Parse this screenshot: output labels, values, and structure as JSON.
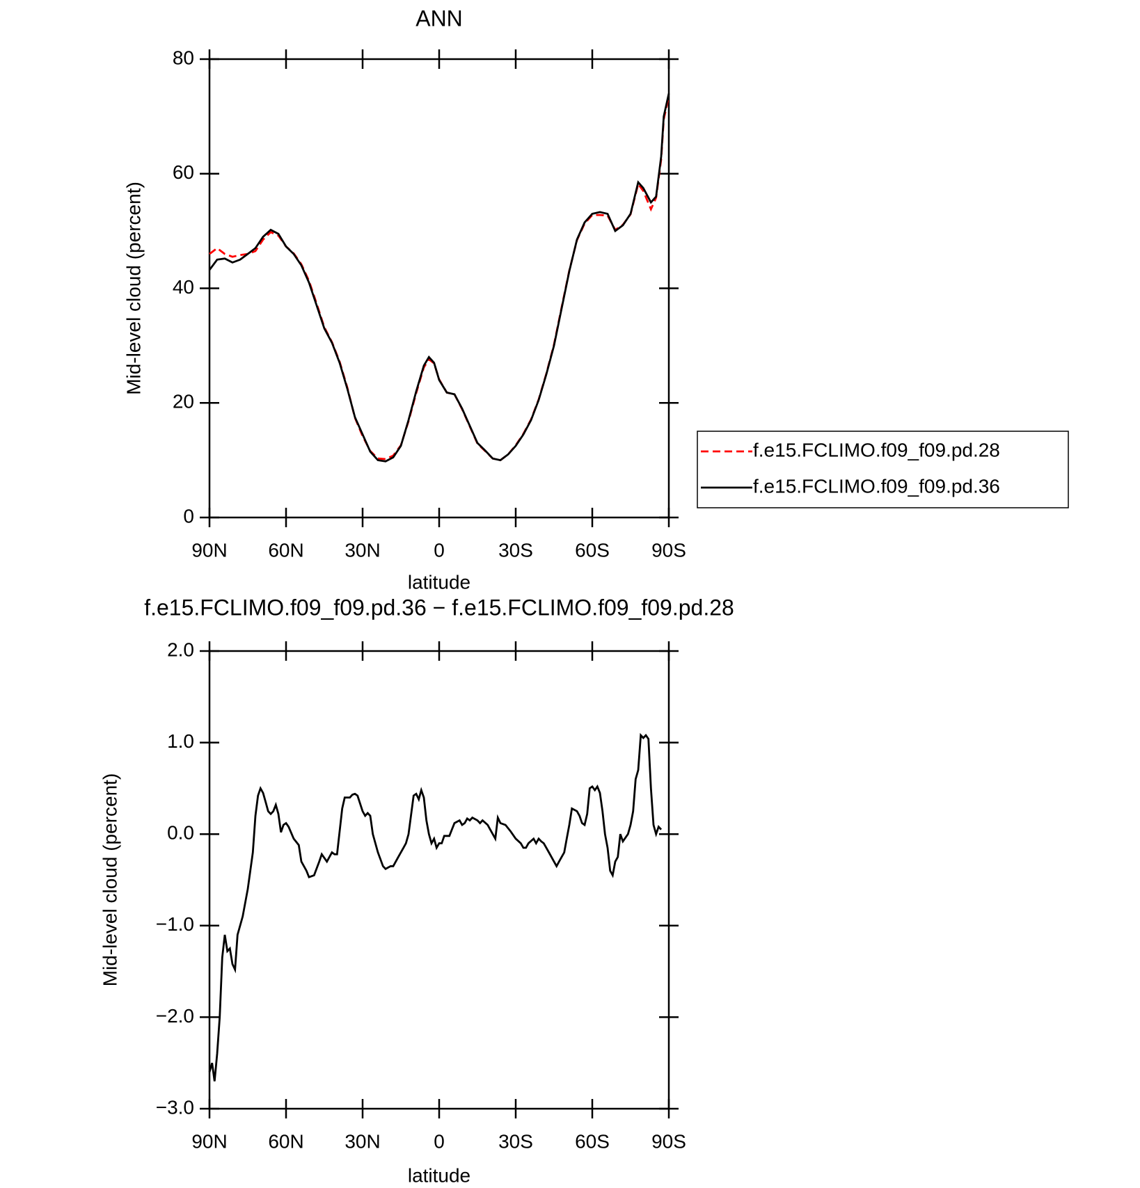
{
  "chart_data": [
    {
      "type": "line",
      "title": "ANN",
      "xlabel": "latitude",
      "ylabel": "Mid-level cloud (percent)",
      "x": [
        90,
        87,
        84,
        81,
        78,
        75,
        72,
        69,
        66,
        63,
        60,
        57,
        54,
        51,
        48,
        45,
        42,
        39,
        36,
        33,
        30,
        27,
        24,
        21,
        18,
        15,
        12,
        9,
        6,
        4,
        2,
        0,
        -3,
        -6,
        -9,
        -12,
        -15,
        -18,
        -21,
        -24,
        -27,
        -30,
        -33,
        -36,
        -39,
        -42,
        -45,
        -48,
        -51,
        -54,
        -57,
        -60,
        -63,
        -66,
        -69,
        -72,
        -75,
        -78,
        -80,
        -83,
        -85,
        -87,
        -88,
        -90
      ],
      "series": [
        {
          "name": "f.e15.FCLIMO.f09_f09.pd.28",
          "color": "#ff0000",
          "linestyle": "dashed",
          "values": [
            46,
            47,
            46,
            45.5,
            45.8,
            46,
            46.5,
            48.5,
            49.8,
            49.2,
            47.3,
            46.1,
            44.2,
            41.3,
            37.3,
            33.2,
            30.6,
            27.2,
            22.7,
            17.4,
            14.2,
            11.6,
            10.3,
            10.2,
            10.8,
            12.6,
            16.8,
            21.7,
            26.2,
            27.6,
            26.9,
            24.1,
            21.8,
            21.5,
            18.9,
            15.9,
            12.9,
            11.6,
            10.3,
            10,
            11,
            12.6,
            14.6,
            17.1,
            20.6,
            25.1,
            30.2,
            36.7,
            43.1,
            48.4,
            51.3,
            52.8,
            52.8,
            52.7,
            50.2,
            51.1,
            52.9,
            58.2,
            57,
            53.8,
            55.8,
            62.5,
            69.5,
            73.5
          ]
        },
        {
          "name": "f.e15.FCLIMO.f09_f09.pd.36",
          "color": "#000000",
          "linestyle": "solid",
          "values": [
            43.2,
            45,
            45.2,
            44.5,
            45,
            46,
            47,
            49,
            50.2,
            49.5,
            47.3,
            46,
            44,
            41,
            37,
            33,
            30.5,
            27,
            22.5,
            17.5,
            14.5,
            11.5,
            10,
            9.8,
            10.5,
            12.5,
            17,
            22,
            26.5,
            28,
            27,
            24,
            21.8,
            21.5,
            19,
            16,
            13,
            11.7,
            10.3,
            10,
            11,
            12.5,
            14.5,
            17,
            20.5,
            25,
            30,
            36.5,
            43,
            48.5,
            51.5,
            53,
            53.3,
            53,
            50,
            51,
            53,
            58.5,
            57.5,
            55,
            56,
            63,
            70,
            74
          ]
        }
      ],
      "xlim": [
        90,
        -90
      ],
      "xticks": [
        {
          "value": 90,
          "label": "90N"
        },
        {
          "value": 60,
          "label": "60N"
        },
        {
          "value": 30,
          "label": "30N"
        },
        0,
        {
          "value": -30,
          "label": "30S"
        },
        {
          "value": -60,
          "label": "60S"
        },
        {
          "value": -90,
          "label": "90S"
        }
      ],
      "ylim": [
        0,
        80
      ],
      "yticks": [
        0,
        20,
        40,
        60,
        80
      ],
      "legend": "right"
    },
    {
      "type": "line",
      "title": "f.e15.FCLIMO.f09_f09.pd.36 − f.e15.FCLIMO.f09_f09.pd.28",
      "xlabel": "latitude",
      "ylabel": "Mid-level cloud (percent)",
      "x": [
        90,
        89,
        88,
        87,
        86,
        85,
        84,
        83,
        82,
        81,
        80,
        79,
        77,
        75,
        73,
        72,
        71,
        70,
        69,
        68,
        67,
        66,
        65,
        64,
        63,
        62,
        61,
        60,
        59,
        57,
        55,
        54,
        52,
        51,
        49,
        47,
        46,
        44,
        42,
        41,
        40,
        38,
        37,
        35,
        34,
        33,
        32,
        30,
        29,
        28,
        27,
        26,
        24,
        22,
        21,
        19,
        18,
        16,
        14,
        13,
        12,
        10,
        9,
        8,
        7,
        6,
        5,
        4,
        3,
        2,
        1,
        0,
        -1,
        -2,
        -3,
        -4,
        -5,
        -6,
        -8,
        -9,
        -10,
        -11,
        -12,
        -13,
        -15,
        -16,
        -17,
        -19,
        -20,
        -21,
        -22,
        -23,
        -24,
        -26,
        -28,
        -30,
        -32,
        -33,
        -34,
        -35,
        -37,
        -38,
        -39,
        -40,
        -41,
        -43,
        -45,
        -46,
        -47,
        -48,
        -49,
        -50,
        -51,
        -52,
        -54,
        -55,
        -56,
        -57,
        -58,
        -59,
        -60,
        -61,
        -62,
        -63,
        -64,
        -65,
        -66,
        -67,
        -68,
        -69,
        -70,
        -71,
        -72,
        -74,
        -75,
        -76,
        -77,
        -78,
        -79,
        -80,
        -81,
        -82,
        -83,
        -84,
        -85,
        -86,
        -87
      ],
      "series": [
        {
          "color": "#000000",
          "linestyle": "solid",
          "values": [
            -2.6,
            -2.5,
            -2.7,
            -2.4,
            -2.0,
            -1.35,
            -1.1,
            -1.28,
            -1.25,
            -1.42,
            -1.48,
            -1.1,
            -0.9,
            -0.6,
            -0.2,
            0.2,
            0.42,
            0.5,
            0.45,
            0.35,
            0.25,
            0.22,
            0.25,
            0.32,
            0.22,
            0.02,
            0.1,
            0.12,
            0.08,
            -0.05,
            -0.12,
            -0.3,
            -0.4,
            -0.47,
            -0.45,
            -0.3,
            -0.22,
            -0.3,
            -0.2,
            -0.22,
            -0.22,
            0.28,
            0.4,
            0.4,
            0.43,
            0.44,
            0.42,
            0.25,
            0.2,
            0.23,
            0.2,
            0.0,
            -0.2,
            -0.35,
            -0.38,
            -0.35,
            -0.35,
            -0.25,
            -0.15,
            -0.1,
            0.0,
            0.42,
            0.44,
            0.38,
            0.48,
            0.4,
            0.15,
            0.0,
            -0.1,
            -0.05,
            -0.15,
            -0.1,
            -0.1,
            -0.02,
            -0.02,
            -0.02,
            0.05,
            0.12,
            0.15,
            0.1,
            0.12,
            0.17,
            0.15,
            0.18,
            0.15,
            0.12,
            0.15,
            0.1,
            0.05,
            0.0,
            -0.05,
            0.18,
            0.12,
            0.1,
            0.03,
            -0.05,
            -0.1,
            -0.15,
            -0.15,
            -0.1,
            -0.05,
            -0.1,
            -0.05,
            -0.08,
            -0.1,
            -0.2,
            -0.3,
            -0.35,
            -0.3,
            -0.25,
            -0.2,
            -0.05,
            0.1,
            0.28,
            0.25,
            0.2,
            0.12,
            0.1,
            0.22,
            0.5,
            0.52,
            0.48,
            0.52,
            0.45,
            0.25,
            0.0,
            -0.15,
            -0.4,
            -0.45,
            -0.3,
            -0.25,
            0.0,
            -0.08,
            0.0,
            0.1,
            0.25,
            0.6,
            0.7,
            1.08,
            1.05,
            1.08,
            1.04,
            0.5,
            0.1,
            0.0,
            0.08,
            0.05
          ]
        }
      ],
      "xlim": [
        90,
        -90
      ],
      "xticks": [
        {
          "value": 90,
          "label": "90N"
        },
        {
          "value": 60,
          "label": "60N"
        },
        {
          "value": 30,
          "label": "30N"
        },
        0,
        {
          "value": -30,
          "label": "30S"
        },
        {
          "value": -60,
          "label": "60S"
        },
        {
          "value": -90,
          "label": "90S"
        }
      ],
      "ylim": [
        -3,
        2
      ],
      "yticks": [
        {
          "value": -3,
          "label": "−3.0"
        },
        {
          "value": -2,
          "label": "−2.0"
        },
        {
          "value": -1,
          "label": "−1.0"
        },
        {
          "value": 0,
          "label": "0.0"
        },
        {
          "value": 1,
          "label": "1.0"
        },
        {
          "value": 2,
          "label": "2.0"
        }
      ]
    }
  ]
}
